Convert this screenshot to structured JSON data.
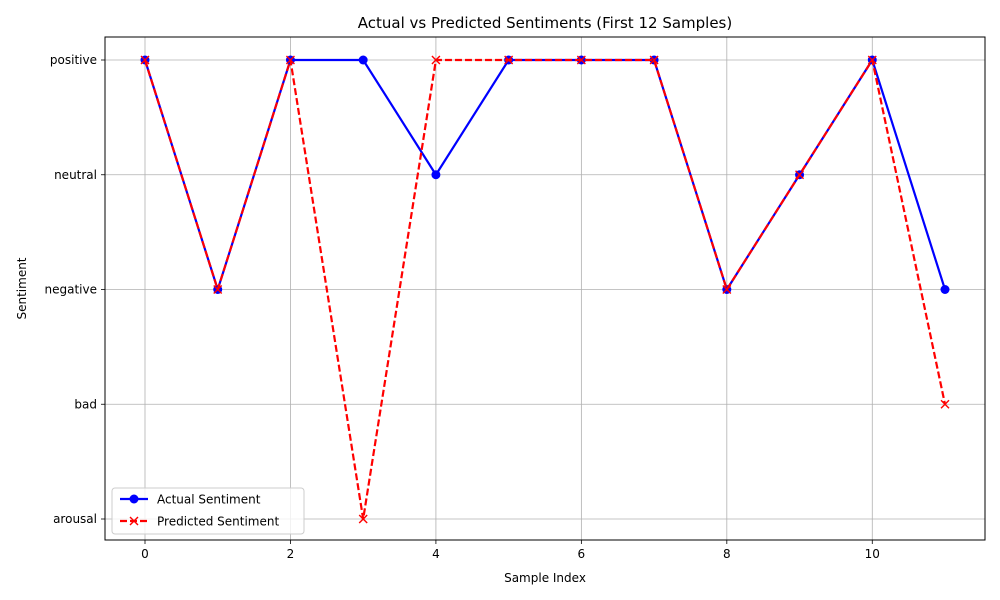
{
  "chart_data": {
    "type": "line",
    "title": "Actual vs Predicted Sentiments (First 12 Samples)",
    "xlabel": "Sample Index",
    "ylabel": "Sentiment",
    "x": [
      0,
      1,
      2,
      3,
      4,
      5,
      6,
      7,
      8,
      9,
      10,
      11
    ],
    "x_ticks": [
      "0",
      "2",
      "4",
      "6",
      "8",
      "10"
    ],
    "xlim": [
      -0.55,
      11.55
    ],
    "y_categories": [
      "arousal",
      "bad",
      "negative",
      "neutral",
      "positive"
    ],
    "grid": true,
    "legend_position": "lower-left",
    "series": [
      {
        "name": "Actual Sentiment",
        "color": "#0000ff",
        "linestyle": "solid",
        "marker": "circle",
        "values": [
          "positive",
          "negative",
          "positive",
          "positive",
          "neutral",
          "positive",
          "positive",
          "positive",
          "negative",
          "neutral",
          "positive",
          "negative"
        ]
      },
      {
        "name": "Predicted Sentiment",
        "color": "#ff0000",
        "linestyle": "dashed",
        "marker": "x",
        "values": [
          "positive",
          "negative",
          "positive",
          "arousal",
          "positive",
          "positive",
          "positive",
          "positive",
          "negative",
          "neutral",
          "positive",
          "bad"
        ]
      }
    ]
  }
}
